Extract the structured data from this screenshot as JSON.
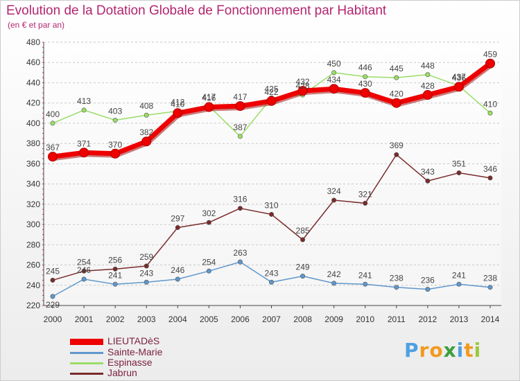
{
  "title": "Evolution de la Dotation Globale de Fonctionnement par Habitant",
  "subtitle": "(en € et par an)",
  "brand": "Proxiti",
  "chart_data": {
    "type": "line",
    "title": "Evolution de la Dotation Globale de Fonctionnement par Habitant",
    "subtitle": "(en € et par an)",
    "xlabel": "",
    "ylabel": "",
    "x": [
      "2000",
      "2001",
      "2002",
      "2003",
      "2004",
      "2005",
      "2006",
      "2007",
      "2008",
      "2009",
      "2010",
      "2011",
      "2012",
      "2013",
      "2014"
    ],
    "ylim": [
      220,
      480
    ],
    "yticks": [
      220,
      240,
      260,
      280,
      300,
      320,
      340,
      360,
      380,
      400,
      420,
      440,
      460,
      480
    ],
    "grid": "horizontal-dashed",
    "legend_position": "bottom-left",
    "series": [
      {
        "name": "LIEUTADèS",
        "color": "#ee0000",
        "highlight": true,
        "values": [
          367,
          371,
          370,
          382,
          410,
          416,
          417,
          422,
          432,
          434,
          430,
          420,
          428,
          436,
          459
        ]
      },
      {
        "name": "Sainte-Marie",
        "color": "#5f97cc",
        "values": [
          229,
          246,
          241,
          243,
          246,
          254,
          263,
          243,
          249,
          242,
          241,
          238,
          236,
          241,
          238
        ]
      },
      {
        "name": "Espinasse",
        "color": "#99dd66",
        "values": [
          400,
          413,
          403,
          408,
          412,
          417,
          387,
          425,
          428,
          450,
          446,
          445,
          448,
          437,
          410
        ]
      },
      {
        "name": "Jabrun",
        "color": "#7a2a2a",
        "values": [
          245,
          254,
          256,
          259,
          297,
          302,
          316,
          310,
          285,
          324,
          321,
          369,
          343,
          351,
          346
        ]
      }
    ]
  }
}
